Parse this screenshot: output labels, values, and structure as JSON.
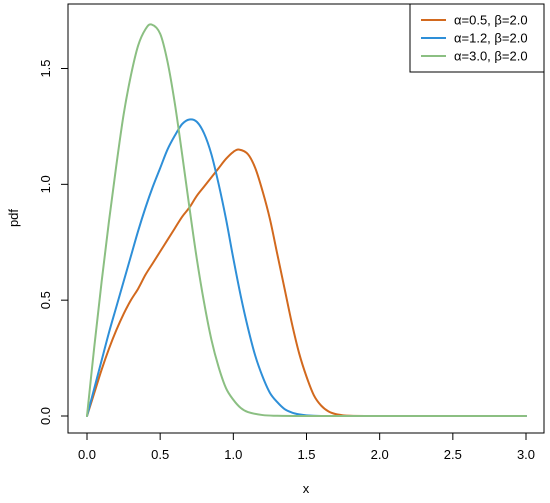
{
  "chart_data": {
    "type": "line",
    "xlabel": "x",
    "ylabel": "pdf",
    "xlim": [
      0,
      3.0
    ],
    "ylim": [
      0,
      1.7
    ],
    "x_ticks": [
      "0.0",
      "0.5",
      "1.0",
      "1.5",
      "2.0",
      "2.5",
      "3.0"
    ],
    "y_ticks": [
      "0.0",
      "0.5",
      "1.0",
      "1.5"
    ],
    "grid": false,
    "legend_position": "top-right",
    "series": [
      {
        "name": "α=0.5, β=2.0",
        "color": "#D2691E",
        "x": [
          0.0,
          0.05,
          0.1,
          0.15,
          0.2,
          0.25,
          0.3,
          0.35,
          0.4,
          0.45,
          0.5,
          0.55,
          0.6,
          0.65,
          0.7,
          0.75,
          0.8,
          0.85,
          0.9,
          0.95,
          1.0,
          1.04,
          1.1,
          1.15,
          1.2,
          1.25,
          1.3,
          1.35,
          1.4,
          1.45,
          1.5,
          1.55,
          1.6,
          1.65,
          1.7,
          1.75,
          1.8,
          1.9,
          2.0,
          2.5,
          3.0
        ],
        "y": [
          0.0,
          0.1,
          0.2,
          0.29,
          0.37,
          0.44,
          0.5,
          0.55,
          0.61,
          0.66,
          0.71,
          0.76,
          0.81,
          0.86,
          0.9,
          0.95,
          0.99,
          1.03,
          1.07,
          1.11,
          1.14,
          1.15,
          1.13,
          1.07,
          0.97,
          0.85,
          0.7,
          0.55,
          0.4,
          0.27,
          0.17,
          0.09,
          0.045,
          0.02,
          0.008,
          0.003,
          0.001,
          0.0,
          0.0,
          0.0,
          0.0
        ]
      },
      {
        "name": "α=1.2, β=2.0",
        "color": "#2E8FD8",
        "x": [
          0.0,
          0.05,
          0.1,
          0.15,
          0.2,
          0.25,
          0.3,
          0.35,
          0.4,
          0.45,
          0.5,
          0.55,
          0.6,
          0.65,
          0.7,
          0.75,
          0.8,
          0.85,
          0.9,
          0.95,
          1.0,
          1.05,
          1.1,
          1.15,
          1.2,
          1.25,
          1.3,
          1.35,
          1.4,
          1.45,
          1.5,
          1.6,
          1.7,
          2.0,
          2.5,
          3.0
        ],
        "y": [
          0.0,
          0.12,
          0.24,
          0.36,
          0.47,
          0.58,
          0.69,
          0.8,
          0.9,
          0.99,
          1.07,
          1.15,
          1.21,
          1.26,
          1.28,
          1.27,
          1.22,
          1.13,
          1.0,
          0.85,
          0.68,
          0.52,
          0.38,
          0.26,
          0.17,
          0.1,
          0.06,
          0.03,
          0.015,
          0.007,
          0.003,
          0.0,
          0.0,
          0.0,
          0.0,
          0.0
        ]
      },
      {
        "name": "α=3.0, β=2.0",
        "color": "#8BBF82",
        "x": [
          0.0,
          0.05,
          0.1,
          0.15,
          0.2,
          0.25,
          0.3,
          0.35,
          0.4,
          0.44,
          0.5,
          0.55,
          0.6,
          0.65,
          0.7,
          0.75,
          0.8,
          0.85,
          0.9,
          0.95,
          1.0,
          1.05,
          1.1,
          1.2,
          1.3,
          1.5,
          2.0,
          2.5,
          3.0
        ],
        "y": [
          0.0,
          0.3,
          0.58,
          0.84,
          1.08,
          1.3,
          1.47,
          1.6,
          1.67,
          1.69,
          1.65,
          1.53,
          1.35,
          1.13,
          0.9,
          0.68,
          0.49,
          0.33,
          0.21,
          0.12,
          0.07,
          0.035,
          0.017,
          0.004,
          0.001,
          0.0,
          0.0,
          0.0,
          0.0
        ]
      }
    ]
  }
}
